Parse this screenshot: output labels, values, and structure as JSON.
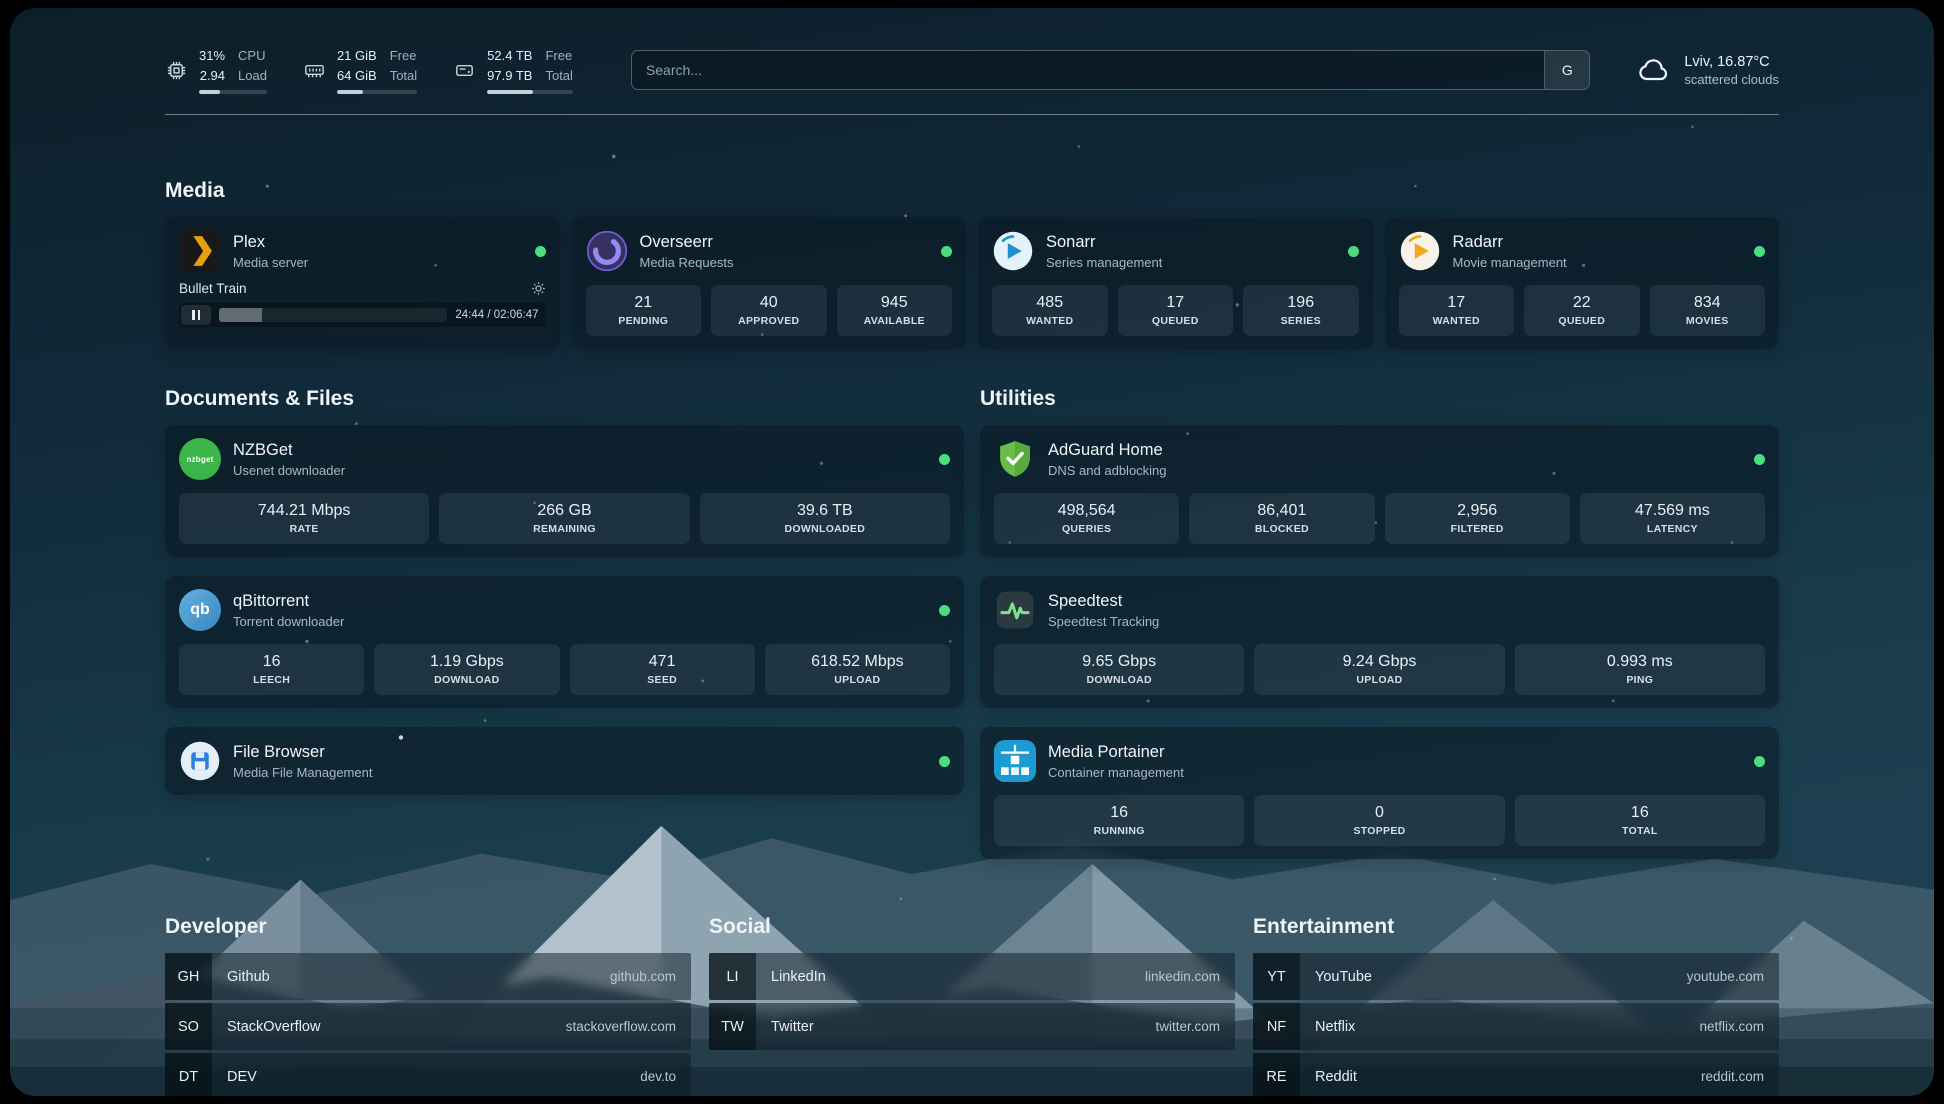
{
  "topbar": {
    "cpu": {
      "icon": "cpu-icon",
      "value1": "31%",
      "value2": "2.94",
      "label1": "CPU",
      "label2": "Load",
      "bar_percent": 31
    },
    "memory": {
      "icon": "memory-icon",
      "value1": "21 GiB",
      "value2": "64 GiB",
      "label1": "Free",
      "label2": "Total",
      "bar_percent": 33
    },
    "disk": {
      "icon": "disk-icon",
      "value1": "52.4 TB",
      "value2": "97.9 TB",
      "label1": "Free",
      "label2": "Total",
      "bar_percent": 54
    },
    "search": {
      "placeholder": "Search...",
      "engine_button": "G",
      "engine_icon": "google-engine-badge"
    },
    "weather": {
      "icon": "cloud-icon",
      "location": "Lviv, 16.87°C",
      "condition": "scattered clouds"
    }
  },
  "section_titles": {
    "media": "Media",
    "documents": "Documents & Files",
    "utilities": "Utilities",
    "developer": "Developer",
    "social": "Social",
    "entertainment": "Entertainment"
  },
  "apps": {
    "plex": {
      "name": "Plex",
      "subtitle": "Media server",
      "icon": "plex-icon",
      "status": "online",
      "now_playing": {
        "title": "Bullet Train",
        "time_display": "24:44 / 02:06:47",
        "progress_percent": 19
      }
    },
    "overseerr": {
      "name": "Overseerr",
      "subtitle": "Media Requests",
      "icon": "overseerr-icon",
      "status": "online",
      "stats": [
        {
          "value": "21",
          "label": "PENDING"
        },
        {
          "value": "40",
          "label": "APPROVED"
        },
        {
          "value": "945",
          "label": "AVAILABLE"
        }
      ]
    },
    "sonarr": {
      "name": "Sonarr",
      "subtitle": "Series management",
      "icon": "sonarr-icon",
      "status": "online",
      "stats": [
        {
          "value": "485",
          "label": "WANTED"
        },
        {
          "value": "17",
          "label": "QUEUED"
        },
        {
          "value": "196",
          "label": "SERIES"
        }
      ]
    },
    "radarr": {
      "name": "Radarr",
      "subtitle": "Movie management",
      "icon": "radarr-icon",
      "status": "online",
      "stats": [
        {
          "value": "17",
          "label": "WANTED"
        },
        {
          "value": "22",
          "label": "QUEUED"
        },
        {
          "value": "834",
          "label": "MOVIES"
        }
      ]
    },
    "nzbget": {
      "name": "NZBGet",
      "subtitle": "Usenet downloader",
      "icon": "nzbget-icon",
      "status": "online",
      "stats": [
        {
          "value": "744.21 Mbps",
          "label": "RATE"
        },
        {
          "value": "266 GB",
          "label": "REMAINING"
        },
        {
          "value": "39.6 TB",
          "label": "DOWNLOADED"
        }
      ]
    },
    "qbittorrent": {
      "name": "qBittorrent",
      "subtitle": "Torrent downloader",
      "icon": "qbittorrent-icon",
      "status": "online",
      "stats": [
        {
          "value": "16",
          "label": "LEECH"
        },
        {
          "value": "1.19 Gbps",
          "label": "DOWNLOAD"
        },
        {
          "value": "471",
          "label": "SEED"
        },
        {
          "value": "618.52 Mbps",
          "label": "UPLOAD"
        }
      ]
    },
    "filebrowser": {
      "name": "File Browser",
      "subtitle": "Media File Management",
      "icon": "filebrowser-icon",
      "status": "online"
    },
    "adguard": {
      "name": "AdGuard Home",
      "subtitle": "DNS and adblocking",
      "icon": "adguard-shield-icon",
      "status": "online",
      "stats": [
        {
          "value": "498,564",
          "label": "QUERIES"
        },
        {
          "value": "86,401",
          "label": "BLOCKED"
        },
        {
          "value": "2,956",
          "label": "FILTERED"
        },
        {
          "value": "47.569 ms",
          "label": "LATENCY"
        }
      ]
    },
    "speedtest": {
      "name": "Speedtest",
      "subtitle": "Speedtest Tracking",
      "icon": "speedtest-icon",
      "status": "none",
      "stats": [
        {
          "value": "9.65 Gbps",
          "label": "DOWNLOAD"
        },
        {
          "value": "9.24 Gbps",
          "label": "UPLOAD"
        },
        {
          "value": "0.993 ms",
          "label": "PING"
        }
      ]
    },
    "portainer": {
      "name": "Media Portainer",
      "subtitle": "Container management",
      "icon": "portainer-icon",
      "status": "online",
      "stats": [
        {
          "value": "16",
          "label": "RUNNING"
        },
        {
          "value": "0",
          "label": "STOPPED"
        },
        {
          "value": "16",
          "label": "TOTAL"
        }
      ]
    }
  },
  "bookmarks": {
    "developer": [
      {
        "abbr": "GH",
        "name": "Github",
        "url": "github.com"
      },
      {
        "abbr": "SO",
        "name": "StackOverflow",
        "url": "stackoverflow.com"
      },
      {
        "abbr": "DT",
        "name": "DEV",
        "url": "dev.to"
      }
    ],
    "social": [
      {
        "abbr": "LI",
        "name": "LinkedIn",
        "url": "linkedin.com"
      },
      {
        "abbr": "TW",
        "name": "Twitter",
        "url": "twitter.com"
      }
    ],
    "entertainment": [
      {
        "abbr": "YT",
        "name": "YouTube",
        "url": "youtube.com"
      },
      {
        "abbr": "NF",
        "name": "Netflix",
        "url": "netflix.com"
      },
      {
        "abbr": "RE",
        "name": "Reddit",
        "url": "reddit.com"
      }
    ]
  },
  "colors": {
    "status_online": "#4ade80",
    "plex_amber": "#e5a00d",
    "background_teal": "#153545"
  }
}
